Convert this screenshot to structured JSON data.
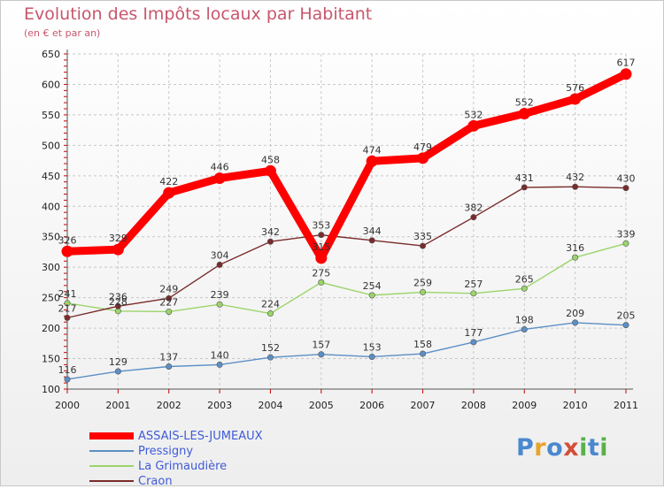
{
  "header": {
    "title": "Evolution des Impôts locaux par Habitant",
    "subtitle": "(en € et par an)"
  },
  "logo": {
    "text": "Proxiti"
  },
  "chart_data": {
    "type": "line",
    "title": "Evolution des Impôts locaux par Habitant",
    "subtitle": "(en € et par an)",
    "xlabel": "",
    "ylabel": "",
    "x": [
      "2000",
      "2001",
      "2002",
      "2003",
      "2004",
      "2005",
      "2006",
      "2007",
      "2008",
      "2009",
      "2010",
      "2011"
    ],
    "ylim": [
      100,
      650
    ],
    "yticks": [
      100,
      150,
      200,
      250,
      300,
      350,
      400,
      450,
      500,
      550,
      600,
      650
    ],
    "grid": true,
    "legend_position": "bottom-left",
    "series": [
      {
        "name": "ASSAIS-LES-JUMEAUX",
        "color": "#ff0000",
        "emphasis": true,
        "values": [
          326,
          329,
          422,
          446,
          458,
          315,
          474,
          479,
          532,
          552,
          576,
          617
        ]
      },
      {
        "name": "Pressigny",
        "color": "#5b8fc6",
        "emphasis": false,
        "values": [
          116,
          129,
          137,
          140,
          152,
          157,
          153,
          158,
          177,
          198,
          209,
          205
        ]
      },
      {
        "name": "La Grimaudière",
        "color": "#9bd46a",
        "emphasis": false,
        "values": [
          241,
          228,
          227,
          239,
          224,
          275,
          254,
          259,
          257,
          265,
          316,
          339
        ]
      },
      {
        "name": "Craon",
        "color": "#7a2b2b",
        "emphasis": false,
        "values": [
          217,
          236,
          249,
          304,
          342,
          353,
          344,
          335,
          382,
          431,
          432,
          430
        ]
      }
    ]
  }
}
